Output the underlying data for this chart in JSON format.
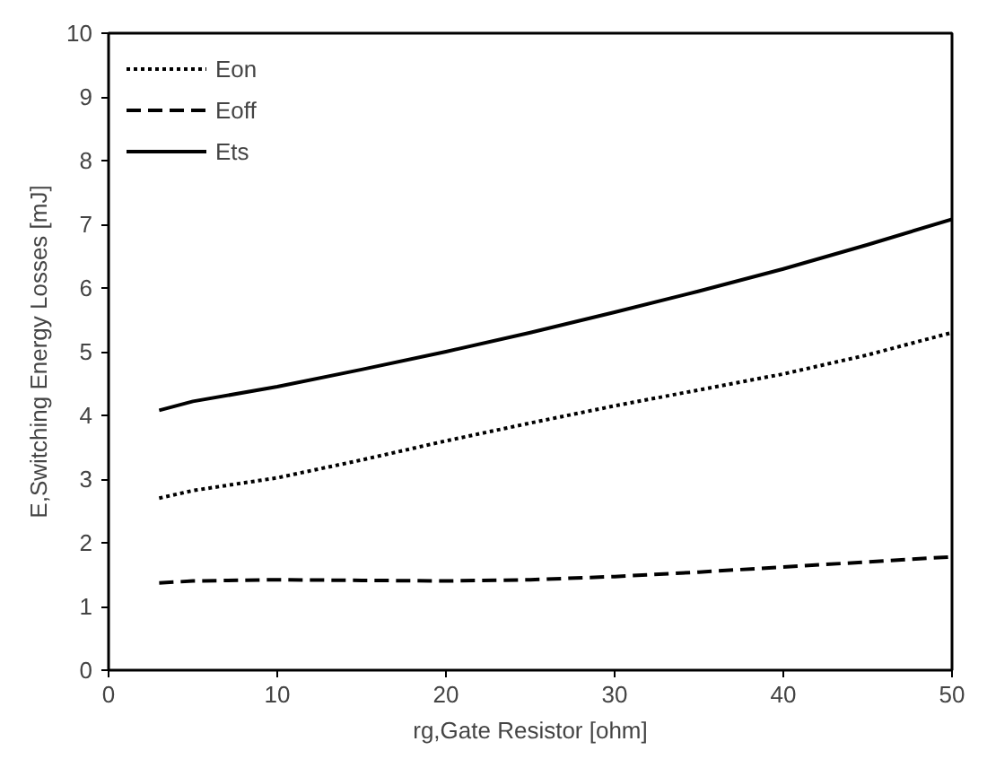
{
  "chart_data": {
    "type": "line",
    "xlabel": "rg,Gate Resistor [ohm]",
    "ylabel": "E,Switching Energy Losses [mJ]",
    "xlim": [
      0,
      50
    ],
    "ylim": [
      0,
      10
    ],
    "xticks": [
      0,
      10,
      20,
      30,
      40,
      50
    ],
    "yticks": [
      0,
      1,
      2,
      3,
      4,
      5,
      6,
      7,
      8,
      9,
      10
    ],
    "grid": false,
    "legend": "top left",
    "marker": "none",
    "series": [
      {
        "name": "Eon",
        "color": "#000000",
        "line_style": "dotted",
        "x": [
          3,
          5,
          10,
          15,
          20,
          25,
          30,
          35,
          40,
          45,
          50
        ],
        "values": [
          2.7,
          2.82,
          3.02,
          3.3,
          3.6,
          3.88,
          4.15,
          4.4,
          4.65,
          4.95,
          5.3
        ]
      },
      {
        "name": "Eoff",
        "color": "#000000",
        "line_style": "dashed",
        "x": [
          3,
          5,
          10,
          15,
          20,
          25,
          30,
          35,
          40,
          45,
          50
        ],
        "values": [
          1.37,
          1.4,
          1.42,
          1.41,
          1.4,
          1.42,
          1.47,
          1.54,
          1.62,
          1.7,
          1.78
        ]
      },
      {
        "name": "Ets",
        "color": "#000000",
        "line_style": "solid",
        "x": [
          3,
          5,
          10,
          15,
          20,
          25,
          30,
          35,
          40,
          45,
          50
        ],
        "values": [
          4.08,
          4.22,
          4.45,
          4.72,
          5.0,
          5.3,
          5.62,
          5.95,
          6.3,
          6.68,
          7.08
        ]
      }
    ]
  }
}
